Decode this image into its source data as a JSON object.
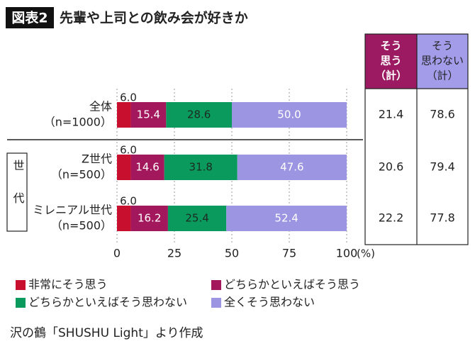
{
  "chart_data": {
    "type": "stacked-bar-horizontal",
    "figure_label": "図表2",
    "title": "先輩や上司との飲み会が好きか",
    "categories": [
      [
        "全体",
        "（n=1000）"
      ],
      [
        "Z世代",
        "（n=500）"
      ],
      [
        "ミレニアル世代",
        "（n=500）"
      ]
    ],
    "group_label": "世代",
    "series": [
      {
        "name": "非常にそう思う",
        "color": "#c8102e",
        "label_color": "#222222",
        "values": [
          6.0,
          6.0,
          6.0
        ],
        "value_labels": [
          "6.0",
          "6.0",
          "6.0"
        ]
      },
      {
        "name": "どちらかといえばそう思う",
        "color": "#a3175c",
        "label_color": "#ffffff",
        "values": [
          15.4,
          14.6,
          16.2
        ],
        "value_labels": [
          "15.4",
          "14.6",
          "16.2"
        ]
      },
      {
        "name": "どちらかといえばそう思わない",
        "color": "#0b9a5d",
        "label_color": "#1c2a22",
        "values": [
          28.6,
          31.8,
          25.4
        ],
        "value_labels": [
          "28.6",
          "31.8",
          "25.4"
        ]
      },
      {
        "name": "全くそう思わない",
        "color": "#9b95e2",
        "label_color": "#ffffff",
        "values": [
          50.0,
          47.6,
          52.4
        ],
        "value_labels": [
          "50.0",
          "47.6",
          "52.4"
        ]
      }
    ],
    "xlim": [
      0,
      100
    ],
    "xticks": [
      0,
      25,
      50,
      75,
      100
    ],
    "x_unit": "(%)",
    "grid": true,
    "table": {
      "columns": [
        {
          "header": [
            "そう",
            "思う",
            "（計）"
          ],
          "color": "#9b1a62",
          "text_color": "#ffffff",
          "values": [
            21.4,
            20.6,
            22.2
          ]
        },
        {
          "header": [
            "そう",
            "思わない",
            "（計）"
          ],
          "color": "#a29ce9",
          "text_color": "#222222",
          "values": [
            78.6,
            79.4,
            77.8
          ]
        }
      ]
    },
    "source": "沢の鶴「SHUSHU Light」より作成"
  }
}
